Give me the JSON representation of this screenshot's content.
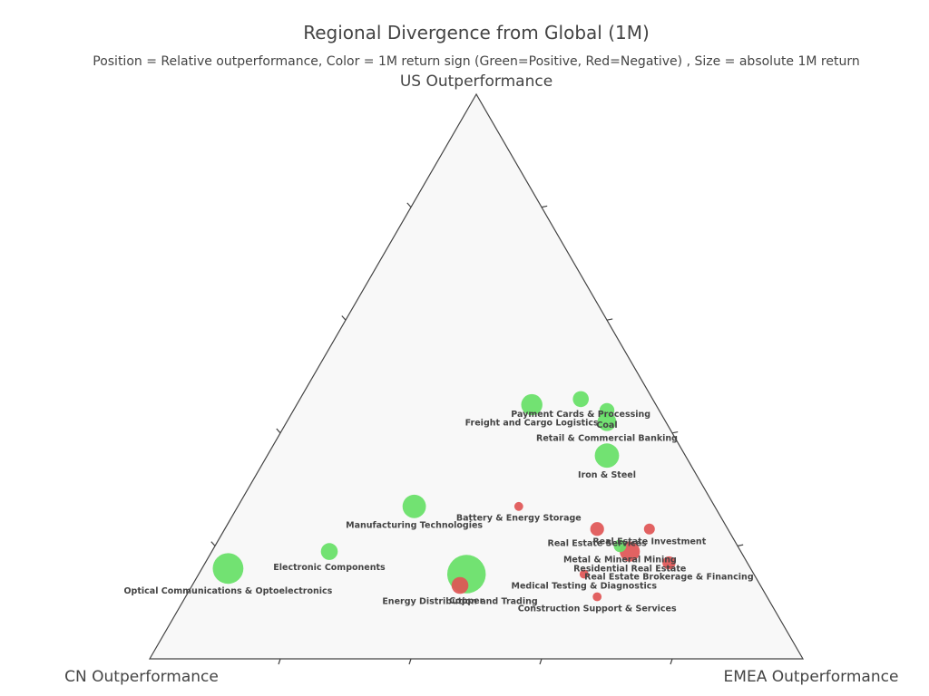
{
  "chart_data": {
    "type": "scatter",
    "title": "Regional Divergence from Global (1M)",
    "subtitle": "Position = Relative outperformance, Color = 1M return sign (Green=Positive, Red=Negative) , Size = absolute 1M return",
    "axes": {
      "top": "US Outperformance",
      "left": "CN Outperformance",
      "right": "EMEA Outperformance"
    },
    "colors": {
      "positive": "#66e066",
      "negative": "#e05555",
      "background": "#f8f8f8",
      "axis": "#444444"
    },
    "points": [
      {
        "name": "Payment Cards & Processing",
        "us": 0.46,
        "cn": 0.11,
        "emea": 0.43,
        "sign": "positive",
        "abs_return": 1.2
      },
      {
        "name": "Coal",
        "us": 0.44,
        "cn": 0.08,
        "emea": 0.48,
        "sign": "positive",
        "abs_return": 1.0
      },
      {
        "name": "Retail & Commercial Banking",
        "us": 0.42,
        "cn": 0.09,
        "emea": 0.49,
        "sign": "positive",
        "abs_return": 1.8
      },
      {
        "name": "Freight and Cargo Logistics",
        "us": 0.45,
        "cn": 0.19,
        "emea": 0.36,
        "sign": "positive",
        "abs_return": 2.5
      },
      {
        "name": "Iron & Steel",
        "us": 0.36,
        "cn": 0.12,
        "emea": 0.52,
        "sign": "positive",
        "abs_return": 3.5
      },
      {
        "name": "Battery & Energy Storage",
        "us": 0.27,
        "cn": 0.3,
        "emea": 0.43,
        "sign": "negative",
        "abs_return": 0.2
      },
      {
        "name": "Manufacturing Technologies",
        "us": 0.27,
        "cn": 0.46,
        "emea": 0.27,
        "sign": "positive",
        "abs_return": 3.2
      },
      {
        "name": "Real Estate Services",
        "us": 0.23,
        "cn": 0.2,
        "emea": 0.57,
        "sign": "negative",
        "abs_return": 0.8
      },
      {
        "name": "Real Estate Investment",
        "us": 0.23,
        "cn": 0.12,
        "emea": 0.65,
        "sign": "negative",
        "abs_return": 0.4
      },
      {
        "name": "Metal & Mineral Mining",
        "us": 0.2,
        "cn": 0.18,
        "emea": 0.62,
        "sign": "positive",
        "abs_return": 0.6
      },
      {
        "name": "Residential Real Estate",
        "us": 0.19,
        "cn": 0.17,
        "emea": 0.64,
        "sign": "negative",
        "abs_return": 2.2
      },
      {
        "name": "Real Estate Brokerage & Financing",
        "us": 0.17,
        "cn": 0.12,
        "emea": 0.71,
        "sign": "negative",
        "abs_return": 0.7
      },
      {
        "name": "Electronic Components",
        "us": 0.19,
        "cn": 0.63,
        "emea": 0.18,
        "sign": "positive",
        "abs_return": 1.4
      },
      {
        "name": "Optical Communications & Optoelectronics",
        "us": 0.16,
        "cn": 0.8,
        "emea": 0.04,
        "sign": "positive",
        "abs_return": 6.0
      },
      {
        "name": "Copper",
        "us": 0.15,
        "cn": 0.44,
        "emea": 0.41,
        "sign": "positive",
        "abs_return": 10.0
      },
      {
        "name": "Energy Distribution and Trading",
        "us": 0.13,
        "cn": 0.46,
        "emea": 0.41,
        "sign": "negative",
        "abs_return": 1.4
      },
      {
        "name": "Medical Testing & Diagnostics",
        "us": 0.15,
        "cn": 0.26,
        "emea": 0.59,
        "sign": "negative",
        "abs_return": 0.2
      },
      {
        "name": "Construction Support  & Services",
        "us": 0.11,
        "cn": 0.26,
        "emea": 0.63,
        "sign": "negative",
        "abs_return": 0.2
      }
    ]
  }
}
